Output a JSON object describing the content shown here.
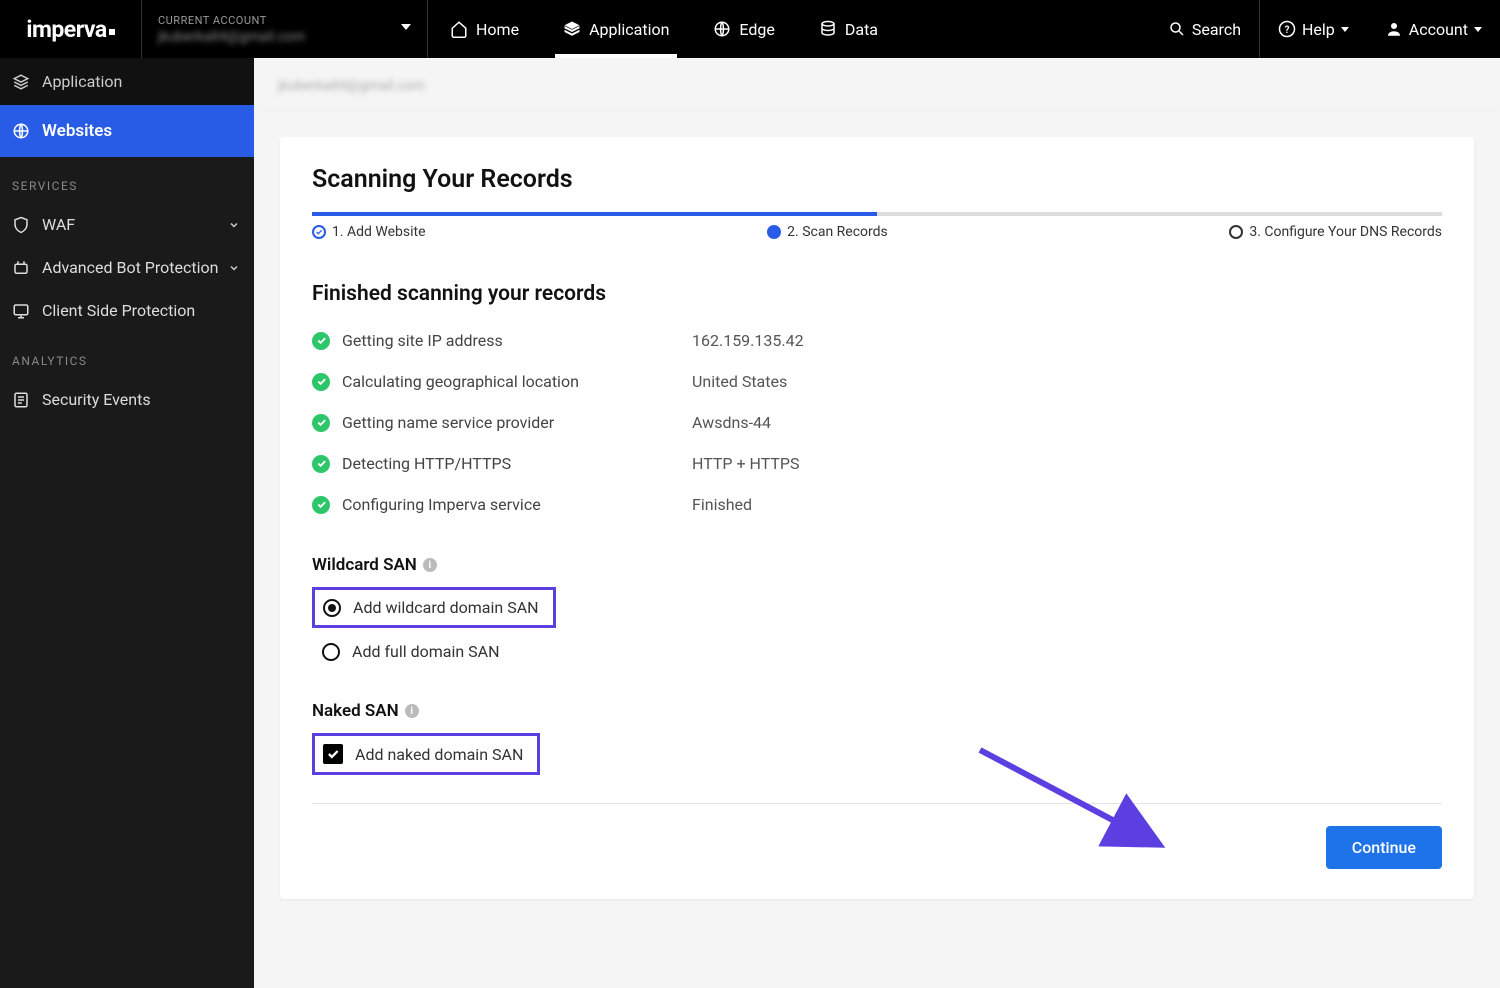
{
  "logo": "imperva",
  "account": {
    "label": "CURRENT ACCOUNT",
    "value": "jkuberka84@gmail.com"
  },
  "nav": {
    "home": "Home",
    "application": "Application",
    "edge": "Edge",
    "data": "Data"
  },
  "tools": {
    "search": "Search",
    "help": "Help",
    "account": "Account"
  },
  "sidebar": {
    "title": "Application",
    "active": "Websites",
    "section1": "SERVICES",
    "waf": "WAF",
    "abp": "Advanced Bot Protection",
    "csp": "Client Side Protection",
    "section2": "ANALYTICS",
    "sec": "Security Events"
  },
  "breadcrumb": "jkuberka84@gmail.com",
  "page": {
    "title": "Scanning Your Records",
    "progress_pct": 50,
    "steps": {
      "s1": "1. Add Website",
      "s2": "2. Scan Records",
      "s3": "3. Configure Your DNS Records"
    },
    "subhead": "Finished scanning your records",
    "rows": [
      {
        "label": "Getting site IP address",
        "value": "162.159.135.42"
      },
      {
        "label": "Calculating geographical location",
        "value": "United States"
      },
      {
        "label": "Getting name service provider",
        "value": "Awsdns-44"
      },
      {
        "label": "Detecting HTTP/HTTPS",
        "value": "HTTP + HTTPS"
      },
      {
        "label": "Configuring Imperva service",
        "value": "Finished"
      }
    ],
    "wildcard": {
      "title": "Wildcard SAN",
      "opt1": "Add wildcard domain SAN",
      "opt2": "Add full domain SAN"
    },
    "naked": {
      "title": "Naked SAN",
      "opt1": "Add naked domain SAN"
    },
    "continue": "Continue"
  },
  "colors": {
    "accent": "#285ce6",
    "highlight": "#5b3fe0",
    "success": "#2ec66b",
    "button": "#1e73e8"
  }
}
